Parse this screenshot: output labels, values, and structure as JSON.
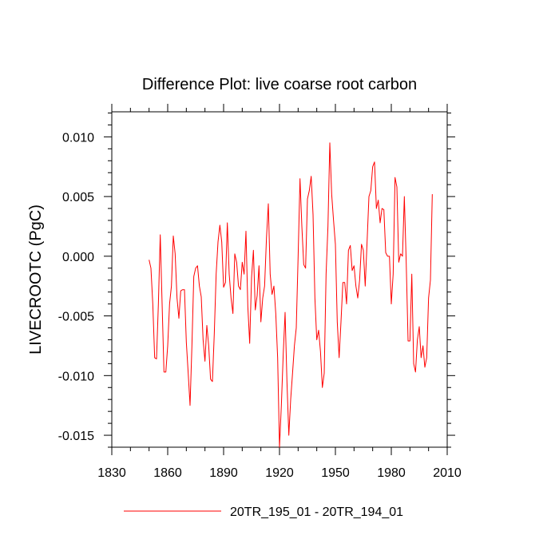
{
  "chart_data": {
    "type": "line",
    "title": "Difference Plot: live coarse root carbon",
    "xlabel": "",
    "ylabel": "LIVECROOTC  (PgC)",
    "xlim": [
      1830,
      2010
    ],
    "ylim": [
      -0.016,
      0.0121
    ],
    "x_ticks": [
      1830,
      1860,
      1890,
      1920,
      1950,
      1980,
      2010
    ],
    "x_tick_labels": [
      "1830",
      "1860",
      "1890",
      "1920",
      "1950",
      "1980",
      "2010"
    ],
    "y_ticks": [
      -0.015,
      -0.01,
      -0.005,
      0.0,
      0.005,
      0.01
    ],
    "y_tick_labels": [
      "-0.015",
      "-0.010",
      "-0.005",
      "0.000",
      "0.005",
      "0.010"
    ],
    "grid": false,
    "legend_position": "bottom",
    "series": [
      {
        "name": "20TR_195_01 - 20TR_194_01",
        "color": "#ff0000",
        "x_start": 1850,
        "x_step": 1,
        "values": [
          -0.0003,
          -0.001,
          -0.004,
          -0.0085,
          -0.0086,
          -0.004,
          0.0018,
          -0.004,
          -0.0097,
          -0.0097,
          -0.0075,
          -0.004,
          -0.0025,
          0.0017,
          0.0002,
          -0.0035,
          -0.0052,
          -0.0029,
          -0.0028,
          -0.0028,
          -0.0072,
          -0.0098,
          -0.0125,
          -0.0075,
          -0.0017,
          -0.001,
          -0.0008,
          -0.0025,
          -0.0034,
          -0.007,
          -0.0088,
          -0.0058,
          -0.0075,
          -0.0103,
          -0.0105,
          -0.0065,
          -0.0015,
          0.0012,
          0.0026,
          0.0012,
          -0.0026,
          -0.0022,
          0.0028,
          -0.0015,
          -0.0035,
          -0.0048,
          0.0002,
          -0.0005,
          -0.0025,
          -0.0028,
          -0.0005,
          -0.0015,
          0.0021,
          -0.0042,
          -0.0073,
          -0.0018,
          0.0005,
          -0.0045,
          -0.0033,
          -0.0008,
          -0.0055,
          -0.0035,
          -0.0025,
          0.0015,
          0.0044,
          -0.0015,
          -0.0032,
          -0.0025,
          -0.0048,
          -0.0085,
          -0.016,
          -0.0125,
          -0.0082,
          -0.0047,
          -0.0105,
          -0.015,
          -0.012,
          -0.0098,
          -0.0075,
          -0.006,
          0.0,
          0.0065,
          0.0025,
          -0.0007,
          -0.001,
          0.0048,
          0.0055,
          0.0067,
          0.0035,
          -0.0035,
          -0.007,
          -0.0062,
          -0.008,
          -0.011,
          -0.0098,
          -0.0015,
          0.0025,
          0.0095,
          0.0052,
          0.003,
          0.001,
          -0.0055,
          -0.0085,
          -0.0055,
          -0.0022,
          -0.0022,
          -0.004,
          0.0005,
          0.0009,
          -0.0012,
          -0.0008,
          -0.0025,
          -0.0035,
          -0.002,
          0.001,
          0.0005,
          -0.0025,
          0.0012,
          0.005,
          0.0055,
          0.0075,
          0.0079,
          0.004,
          0.0047,
          0.0028,
          0.004,
          0.0039,
          0.0003,
          0.0,
          0.0,
          -0.004,
          -0.0015,
          0.0066,
          0.0058,
          -0.0005,
          0.0002,
          0.0,
          0.005,
          -0.0005,
          -0.0071,
          -0.0071,
          -0.0015,
          -0.009,
          -0.0097,
          -0.007,
          -0.0059,
          -0.0085,
          -0.0075,
          -0.0093,
          -0.0085,
          -0.0035,
          -0.002,
          0.0052
        ]
      }
    ]
  }
}
